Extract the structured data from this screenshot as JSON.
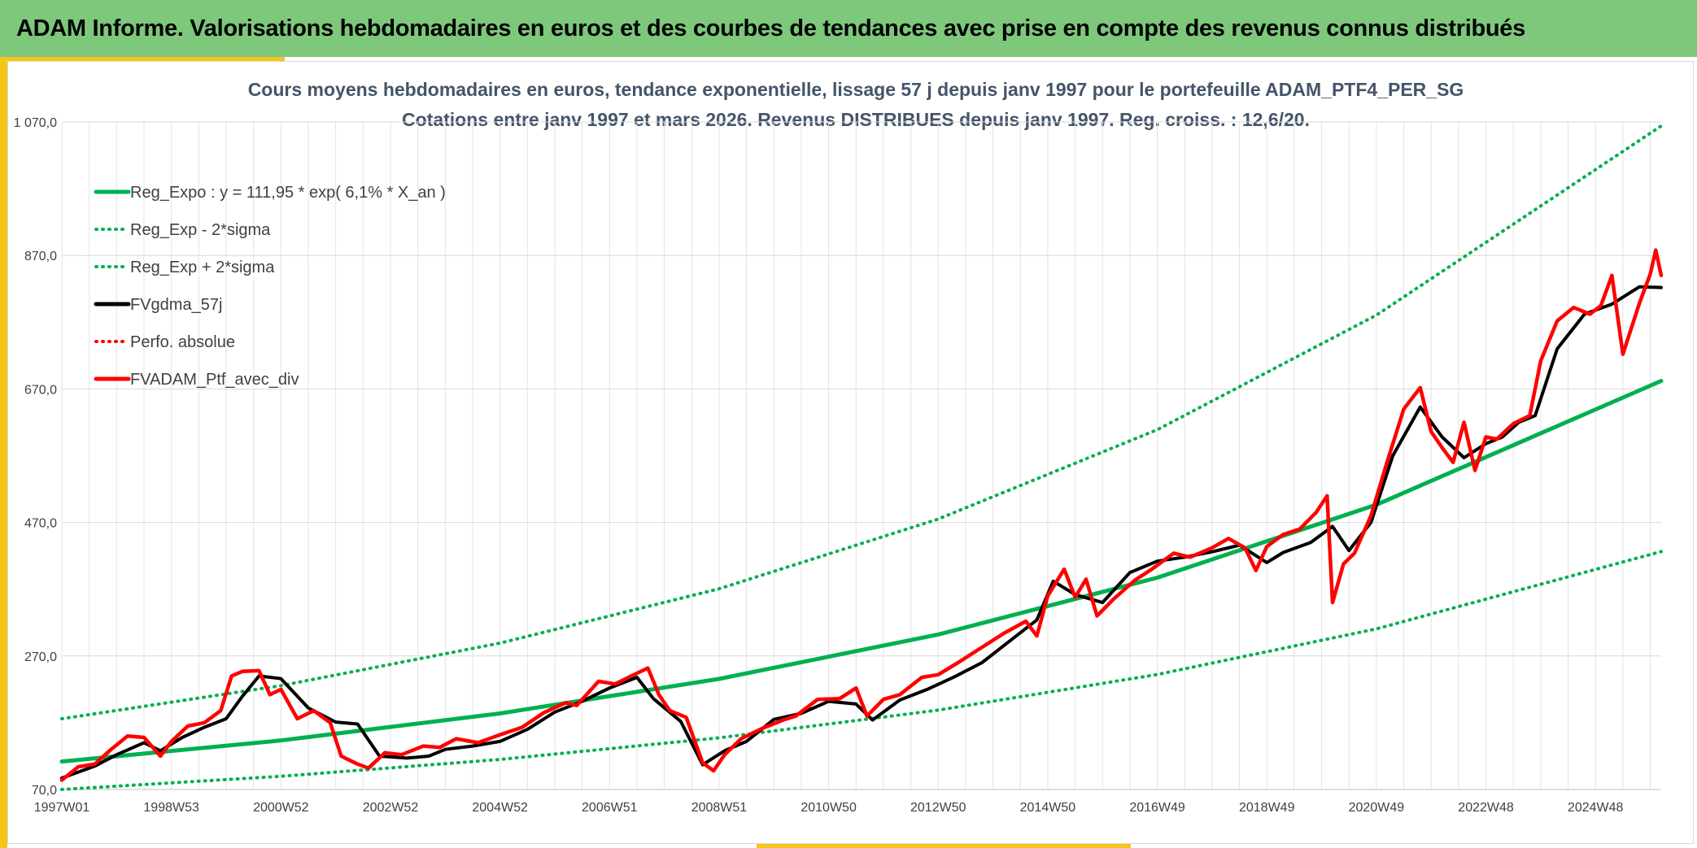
{
  "header": {
    "title": "ADAM Informe. Valorisations hebdomadaires en euros et des courbes de tendances avec prise en compte des revenus connus distribués"
  },
  "colors": {
    "banner": "#7dc87b",
    "accent": "#f5c518",
    "green": "#00b050",
    "red": "#ff0000",
    "black": "#000000"
  },
  "chart_data": {
    "type": "line",
    "title": "Cours moyens hebdomadaires en euros, tendance exponentielle, lissage 57 j depuis janv 1997 pour le portefeuille ADAM_PTF4_PER_SG",
    "subtitle": "Cotations entre janv 1997 et mars 2026. Revenus DISTRIBUES depuis janv 1997. Reg. croiss. : 12,6/20.",
    "xlabel": "",
    "ylabel": "",
    "xlim": [
      1997.0,
      2026.2
    ],
    "ylim": [
      70,
      1070
    ],
    "y_ticks": [
      {
        "value": 70,
        "label": "70,0"
      },
      {
        "value": 270,
        "label": "270,0"
      },
      {
        "value": 470,
        "label": "470,0"
      },
      {
        "value": 670,
        "label": "670,0"
      },
      {
        "value": 870,
        "label": "870,0"
      },
      {
        "value": 1070,
        "label": "1 070,0"
      }
    ],
    "x_ticks": [
      {
        "value": 1997.0,
        "label": "1997W01"
      },
      {
        "value": 1999.0,
        "label": "1998W53"
      },
      {
        "value": 2001.0,
        "label": "2000W52"
      },
      {
        "value": 2003.0,
        "label": "2002W52"
      },
      {
        "value": 2005.0,
        "label": "2004W52"
      },
      {
        "value": 2007.0,
        "label": "2006W51"
      },
      {
        "value": 2009.0,
        "label": "2008W51"
      },
      {
        "value": 2011.0,
        "label": "2010W50"
      },
      {
        "value": 2013.0,
        "label": "2012W50"
      },
      {
        "value": 2015.0,
        "label": "2014W50"
      },
      {
        "value": 2017.0,
        "label": "2016W49"
      },
      {
        "value": 2019.0,
        "label": "2018W49"
      },
      {
        "value": 2021.0,
        "label": "2020W49"
      },
      {
        "value": 2023.0,
        "label": "2022W48"
      },
      {
        "value": 2025.0,
        "label": "2024W48"
      }
    ],
    "legend_position": "top-left",
    "series": [
      {
        "name": "Reg_Expo : y = 111,95 * exp( 6,1% *  X_an )",
        "key": "reg",
        "color": "#00b050",
        "style": "solid",
        "x": [
          1997.0,
          2001.0,
          2005.0,
          2009.0,
          2013.0,
          2017.0,
          2021.0,
          2026.2
        ],
        "values": [
          111.95,
          143.5,
          183.9,
          235.7,
          302.2,
          387.3,
          496.5,
          682.0
        ]
      },
      {
        "name": "Reg_Exp - 2*sigma",
        "key": "low",
        "color": "#00b050",
        "style": "dotted",
        "x": [
          1997.0,
          2001.0,
          2005.0,
          2009.0,
          2013.0,
          2017.0,
          2021.0,
          2026.2
        ],
        "values": [
          70.0,
          89.7,
          115.0,
          147.4,
          188.9,
          242.2,
          310.5,
          426.4
        ]
      },
      {
        "name": "Reg_Exp + 2*sigma",
        "key": "high",
        "color": "#00b050",
        "style": "dotted",
        "x": [
          1997.0,
          2001.0,
          2005.0,
          2009.0,
          2013.0,
          2017.0,
          2021.0,
          2026.2
        ],
        "values": [
          176.0,
          225.6,
          289.2,
          370.6,
          475.1,
          609.0,
          780.6,
          1064.0
        ]
      },
      {
        "name": "FVgdma_57j",
        "key": "smooth",
        "color": "#000000",
        "style": "solid",
        "x": [
          1997.0,
          1997.6,
          1998.0,
          1998.5,
          1998.8,
          1999.2,
          1999.6,
          2000.0,
          2000.3,
          2000.6,
          2001.0,
          2001.5,
          2002.0,
          2002.4,
          2002.8,
          2003.3,
          2003.7,
          2004.0,
          2004.5,
          2005.0,
          2005.5,
          2006.0,
          2006.5,
          2007.0,
          2007.5,
          2007.8,
          2008.3,
          2008.7,
          2009.1,
          2009.5,
          2010.0,
          2010.5,
          2011.0,
          2011.5,
          2011.8,
          2012.3,
          2012.8,
          2013.3,
          2013.8,
          2014.3,
          2014.8,
          2015.1,
          2015.5,
          2016.0,
          2016.5,
          2017.0,
          2017.5,
          2018.0,
          2018.5,
          2019.0,
          2019.3,
          2019.8,
          2020.2,
          2020.5,
          2020.9,
          2021.3,
          2021.8,
          2022.2,
          2022.6,
          2023.0,
          2023.3,
          2023.6,
          2023.9,
          2024.3,
          2024.8,
          2025.3,
          2025.8,
          2026.2
        ],
        "values": [
          87,
          105,
          122,
          140,
          128,
          148,
          163,
          176,
          210,
          240,
          236,
          192,
          171,
          168,
          120,
          117,
          120,
          130,
          135,
          142,
          160,
          186,
          202,
          222,
          238,
          206,
          172,
          107,
          128,
          142,
          175,
          184,
          202,
          198,
          174,
          204,
          220,
          239,
          260,
          292,
          324,
          382,
          362,
          350,
          395,
          412,
          418,
          426,
          436,
          410,
          425,
          440,
          464,
          428,
          470,
          570,
          643,
          598,
          567,
          588,
          598,
          620,
          630,
          730,
          782,
          797,
          823,
          822
        ]
      },
      {
        "name": "Perfo. absolue",
        "key": "perfo",
        "color": "#ff0000",
        "style": "dotted",
        "x": [],
        "values": []
      },
      {
        "name": "FVADAM_Ptf_avec_div",
        "key": "actual",
        "color": "#ff0000",
        "style": "solid",
        "x": [
          1997.0,
          1997.3,
          1997.6,
          1997.9,
          1998.2,
          1998.5,
          1998.8,
          1999.0,
          1999.3,
          1999.6,
          1999.9,
          2000.1,
          2000.3,
          2000.6,
          2000.8,
          2001.0,
          2001.3,
          2001.6,
          2001.9,
          2002.1,
          2002.4,
          2002.6,
          2002.9,
          2003.2,
          2003.6,
          2003.9,
          2004.2,
          2004.6,
          2005.0,
          2005.4,
          2005.8,
          2006.2,
          2006.4,
          2006.8,
          2007.1,
          2007.4,
          2007.7,
          2007.9,
          2008.1,
          2008.4,
          2008.7,
          2008.9,
          2009.1,
          2009.4,
          2009.8,
          2010.2,
          2010.4,
          2010.8,
          2011.2,
          2011.5,
          2011.7,
          2012.0,
          2012.3,
          2012.7,
          2013.0,
          2013.4,
          2013.8,
          2014.2,
          2014.6,
          2014.8,
          2015.0,
          2015.3,
          2015.5,
          2015.7,
          2015.9,
          2016.2,
          2016.6,
          2016.9,
          2017.3,
          2017.6,
          2018.0,
          2018.3,
          2018.6,
          2018.8,
          2019.0,
          2019.3,
          2019.6,
          2019.9,
          2020.1,
          2020.2,
          2020.4,
          2020.6,
          2020.9,
          2021.2,
          2021.5,
          2021.8,
          2022.0,
          2022.2,
          2022.4,
          2022.6,
          2022.8,
          2023.0,
          2023.2,
          2023.5,
          2023.8,
          2024.0,
          2024.3,
          2024.6,
          2024.9,
          2025.1,
          2025.3,
          2025.5,
          2025.8,
          2026.0,
          2026.1,
          2026.2
        ],
        "values": [
          84,
          104,
          108,
          130,
          150,
          148,
          120,
          142,
          165,
          170,
          188,
          240,
          247,
          248,
          212,
          220,
          176,
          188,
          170,
          120,
          108,
          102,
          125,
          122,
          135,
          133,
          146,
          140,
          152,
          163,
          185,
          200,
          196,
          232,
          228,
          240,
          252,
          212,
          188,
          178,
          110,
          98,
          122,
          146,
          162,
          175,
          180,
          205,
          206,
          222,
          180,
          205,
          212,
          238,
          242,
          262,
          283,
          304,
          322,
          300,
          360,
          400,
          358,
          385,
          330,
          355,
          384,
          400,
          424,
          418,
          432,
          446,
          432,
          398,
          434,
          452,
          460,
          485,
          510,
          350,
          408,
          424,
          480,
          562,
          640,
          672,
          606,
          582,
          560,
          620,
          548,
          598,
          595,
          618,
          630,
          712,
          772,
          792,
          782,
          795,
          840,
          722,
          798,
          842,
          878,
          840
        ]
      }
    ]
  }
}
